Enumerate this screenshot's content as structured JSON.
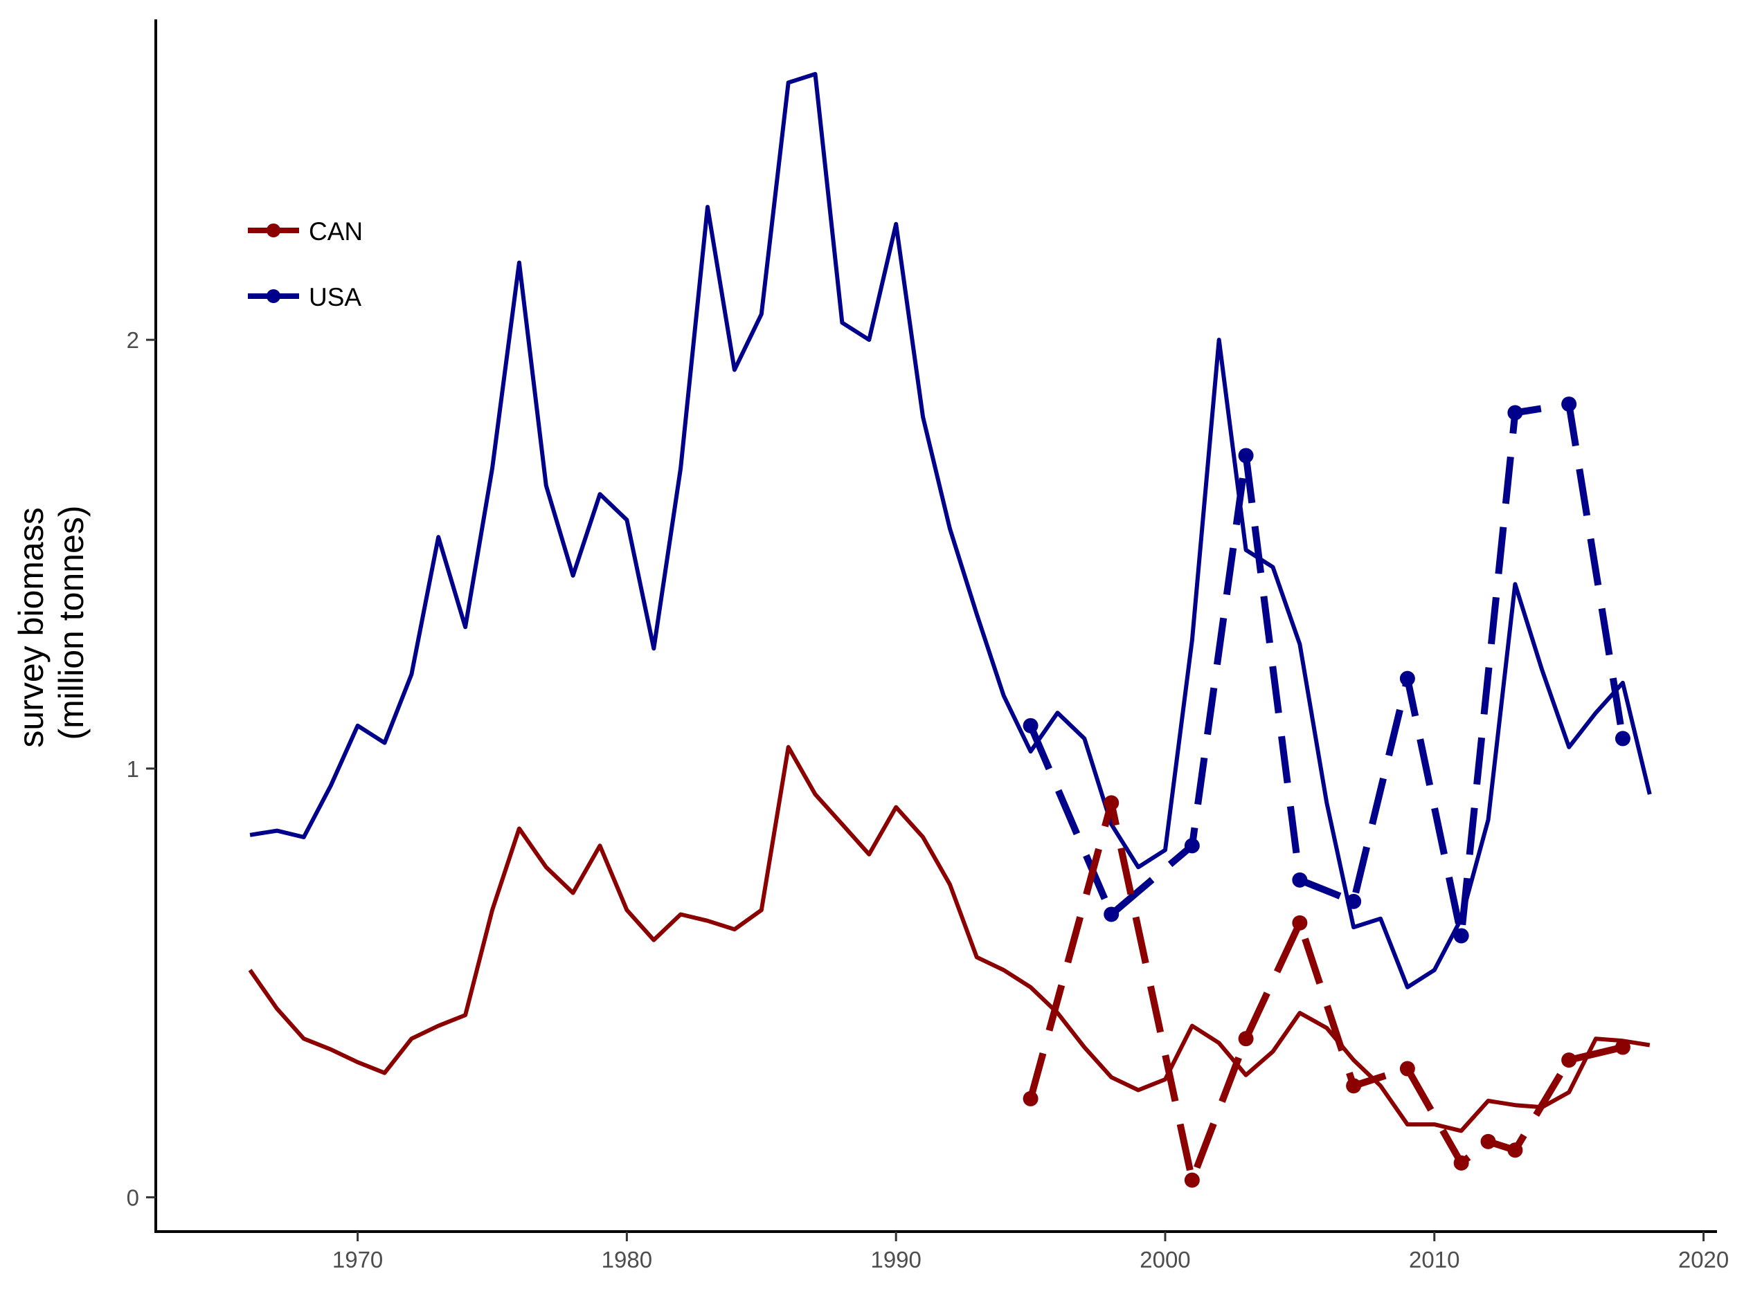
{
  "chart_data": {
    "type": "line",
    "title": "",
    "xlabel": "",
    "ylabel_lines": [
      "survey biomass",
      "(million tonnes)"
    ],
    "xlim": [
      1962.5,
      2020.5
    ],
    "ylim": [
      -0.08,
      2.72
    ],
    "x_ticks": [
      1970,
      1980,
      1990,
      2000,
      2010,
      2020
    ],
    "y_ticks": [
      0,
      1,
      2
    ],
    "grid": false,
    "legend_position": "top-left",
    "legend": [
      {
        "label": "CAN",
        "color": "#8B0000"
      },
      {
        "label": "USA",
        "color": "#00008B"
      }
    ],
    "series": [
      {
        "name": "USA",
        "style": "solid",
        "color": "#00008B",
        "x": [
          1966,
          1967,
          1968,
          1969,
          1970,
          1971,
          1972,
          1973,
          1974,
          1975,
          1976,
          1977,
          1978,
          1979,
          1980,
          1981,
          1982,
          1983,
          1984,
          1985,
          1986,
          1987,
          1988,
          1989,
          1990,
          1991,
          1992,
          1993,
          1994,
          1995,
          1996,
          1997,
          1998,
          1999,
          2000,
          2001,
          2002,
          2003,
          2004,
          2005,
          2006,
          2007,
          2008,
          2009,
          2010,
          2011,
          2012,
          2013,
          2014,
          2015,
          2016,
          2017,
          2018
        ],
        "y": [
          0.845,
          0.855,
          0.84,
          0.96,
          1.1,
          1.06,
          1.22,
          1.54,
          1.33,
          1.7,
          2.18,
          1.66,
          1.45,
          1.64,
          1.58,
          1.28,
          1.7,
          2.31,
          1.93,
          2.06,
          2.6,
          2.62,
          2.04,
          2.0,
          2.27,
          1.82,
          1.56,
          1.36,
          1.17,
          1.04,
          1.13,
          1.07,
          0.87,
          0.77,
          0.81,
          1.3,
          2.0,
          1.51,
          1.47,
          1.29,
          0.92,
          0.63,
          0.65,
          0.49,
          0.53,
          0.65,
          0.88,
          1.43,
          1.23,
          1.05,
          1.13,
          1.2,
          0.94
        ]
      },
      {
        "name": "CAN",
        "style": "solid",
        "color": "#8B0000",
        "x": [
          1966,
          1967,
          1968,
          1969,
          1970,
          1971,
          1972,
          1973,
          1974,
          1975,
          1976,
          1977,
          1978,
          1979,
          1980,
          1981,
          1982,
          1983,
          1984,
          1985,
          1986,
          1987,
          1988,
          1989,
          1990,
          1991,
          1992,
          1993,
          1994,
          1995,
          1996,
          1997,
          1998,
          1999,
          2000,
          2001,
          2002,
          2003,
          2004,
          2005,
          2006,
          2007,
          2008,
          2009,
          2010,
          2011,
          2012,
          2013,
          2014,
          2015,
          2016,
          2017,
          2018
        ],
        "y": [
          0.53,
          0.44,
          0.37,
          0.345,
          0.315,
          0.29,
          0.37,
          0.4,
          0.425,
          0.67,
          0.86,
          0.77,
          0.71,
          0.82,
          0.67,
          0.6,
          0.66,
          0.645,
          0.625,
          0.67,
          1.05,
          0.94,
          0.87,
          0.8,
          0.91,
          0.84,
          0.73,
          0.56,
          0.53,
          0.49,
          0.43,
          0.35,
          0.28,
          0.25,
          0.275,
          0.4,
          0.36,
          0.285,
          0.34,
          0.43,
          0.395,
          0.32,
          0.26,
          0.17,
          0.17,
          0.155,
          0.225,
          0.215,
          0.21,
          0.245,
          0.37,
          0.365,
          0.355
        ]
      },
      {
        "name": "USA",
        "style": "dashed",
        "color": "#00008B",
        "x": [
          1995,
          1998,
          2001,
          2003,
          2005,
          2007,
          2009,
          2011,
          2013,
          2015,
          2017
        ],
        "y": [
          1.1,
          0.66,
          0.82,
          1.73,
          0.74,
          0.69,
          1.21,
          0.61,
          1.83,
          1.85,
          1.07
        ]
      },
      {
        "name": "CAN",
        "style": "dashed",
        "color": "#8B0000",
        "x": [
          1995,
          1998,
          2001,
          2003,
          2005,
          2007,
          2009,
          2011,
          2012,
          2013,
          2015,
          2017
        ],
        "y": [
          0.23,
          0.92,
          0.04,
          0.37,
          0.64,
          0.26,
          0.3,
          0.08,
          0.13,
          0.11,
          0.32,
          0.35
        ]
      }
    ]
  }
}
